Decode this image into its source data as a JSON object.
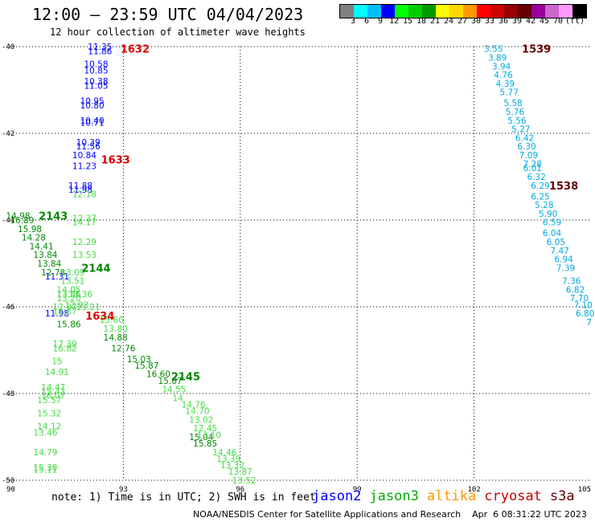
{
  "header": {
    "title": "12:00 — 23:59 UTC 04/04/2023",
    "subtitle": "12 hour collection of altimeter wave heights"
  },
  "colorbar": {
    "colors": [
      "#808080",
      "#00ffff",
      "#00bfff",
      "#0000ff",
      "#00ff00",
      "#00cc00",
      "#009900",
      "#ffff00",
      "#ffd700",
      "#ff9900",
      "#ff0000",
      "#cc0000",
      "#990000",
      "#660000",
      "#990099",
      "#cc66cc",
      "#ff99ff",
      "#000000"
    ],
    "ticks": [
      "3",
      "6",
      "9",
      "12",
      "15",
      "18",
      "21",
      "24",
      "27",
      "30",
      "33",
      "36",
      "39",
      "42",
      "45",
      "70",
      "(ft)"
    ]
  },
  "note": "note:  1) Time is in UTC; 2) SWH is in feet",
  "legend": [
    {
      "label": "jason2",
      "color": "#0000ff"
    },
    {
      "label": "jason3",
      "color": "#00aa00"
    },
    {
      "label": "altika",
      "color": "#ff9900"
    },
    {
      "label": "cryosat",
      "color": "#cc0000"
    },
    {
      "label": "s3a",
      "color": "#660000"
    }
  ],
  "footer": "NOAA/NESDIS Center for Satellite Applications and Research    Apr  6 08:31:22 UTC 2023",
  "chart_data": {
    "type": "scatter",
    "xlim": [
      90,
      105
    ],
    "ylim": [
      -50,
      -40
    ],
    "xticks": [
      "90",
      "93",
      "96",
      "99",
      "102",
      "105"
    ],
    "yticks": [
      "-40",
      "-42",
      "-44",
      "-46",
      "-48",
      "-50"
    ],
    "grid": true,
    "times": [
      {
        "label": "1632",
        "x": 93.3,
        "y": -40.05,
        "color": "#dd0000"
      },
      {
        "label": "1633",
        "x": 92.8,
        "y": -42.6,
        "color": "#dd0000"
      },
      {
        "label": "1634",
        "x": 92.4,
        "y": -46.2,
        "color": "#dd0000"
      },
      {
        "label": "2143",
        "x": 91.2,
        "y": -43.9,
        "color": "#008800"
      },
      {
        "label": "2144",
        "x": 92.3,
        "y": -45.1,
        "color": "#008800"
      },
      {
        "label": "2145",
        "x": 94.6,
        "y": -47.6,
        "color": "#008800"
      },
      {
        "label": "1539",
        "x": 103.6,
        "y": -40.05,
        "color": "#660000"
      },
      {
        "label": "1538",
        "x": 104.3,
        "y": -43.2,
        "color": "#660000"
      }
    ],
    "series": [
      {
        "name": "jason2",
        "color": "#0000ff",
        "points": [
          {
            "x": 92.4,
            "y": -40.0,
            "v": 11.35
          },
          {
            "x": 92.4,
            "y": -40.1,
            "v": 11.86
          },
          {
            "x": 92.3,
            "y": -40.4,
            "v": 10.58
          },
          {
            "x": 92.3,
            "y": -40.55,
            "v": 10.85
          },
          {
            "x": 92.3,
            "y": -40.8,
            "v": 10.38
          },
          {
            "x": 92.3,
            "y": -40.9,
            "v": 11.05
          },
          {
            "x": 92.2,
            "y": -41.25,
            "v": 10.95
          },
          {
            "x": 92.2,
            "y": -41.35,
            "v": 10.8
          },
          {
            "x": 92.2,
            "y": -41.7,
            "v": 10.4
          },
          {
            "x": 92.2,
            "y": -41.75,
            "v": 10.71
          },
          {
            "x": 92.1,
            "y": -42.2,
            "v": 10.39
          },
          {
            "x": 92.1,
            "y": -42.3,
            "v": 11.56
          },
          {
            "x": 92.0,
            "y": -42.5,
            "v": 10.84
          },
          {
            "x": 92.0,
            "y": -42.75,
            "v": 11.23
          },
          {
            "x": 91.9,
            "y": -43.2,
            "v": 11.88
          },
          {
            "x": 91.9,
            "y": -43.3,
            "v": 11.98
          },
          {
            "x": 91.3,
            "y": -45.3,
            "v": 11.31
          },
          {
            "x": 91.3,
            "y": -46.15,
            "v": 11.98
          }
        ]
      },
      {
        "name": "jason3",
        "color": "#008800",
        "points": [
          {
            "x": 90.3,
            "y": -43.9,
            "v": 14.98
          },
          {
            "x": 90.4,
            "y": -44.0,
            "v": 16.89
          },
          {
            "x": 90.6,
            "y": -44.2,
            "v": 15.98
          },
          {
            "x": 90.7,
            "y": -44.4,
            "v": 14.28
          },
          {
            "x": 90.9,
            "y": -44.6,
            "v": 14.41
          },
          {
            "x": 91.0,
            "y": -44.8,
            "v": 13.84
          },
          {
            "x": 91.1,
            "y": -45.0,
            "v": 13.84
          },
          {
            "x": 91.2,
            "y": -45.2,
            "v": 12.78
          },
          {
            "x": 91.6,
            "y": -46.4,
            "v": 15.86
          },
          {
            "x": 92.8,
            "y": -46.7,
            "v": 14.88
          },
          {
            "x": 93.0,
            "y": -46.95,
            "v": 12.76
          },
          {
            "x": 93.4,
            "y": -47.2,
            "v": 15.03
          },
          {
            "x": 93.6,
            "y": -47.35,
            "v": 15.87
          },
          {
            "x": 93.9,
            "y": -47.55,
            "v": 16.6
          },
          {
            "x": 94.2,
            "y": -47.7,
            "v": 15.67
          },
          {
            "x": 95.0,
            "y": -49.0,
            "v": 15.04
          },
          {
            "x": 95.1,
            "y": -49.15,
            "v": 15.85
          }
        ]
      },
      {
        "name": "jason3-light",
        "color": "#44dd44",
        "points": [
          {
            "x": 92.0,
            "y": -43.4,
            "v": 12.18
          },
          {
            "x": 92.0,
            "y": -43.95,
            "v": 12.37
          },
          {
            "x": 92.0,
            "y": -44.05,
            "v": 14.17
          },
          {
            "x": 92.0,
            "y": -44.5,
            "v": 12.29
          },
          {
            "x": 92.0,
            "y": -44.8,
            "v": 13.53
          },
          {
            "x": 91.7,
            "y": -45.2,
            "v": 13.09
          },
          {
            "x": 91.7,
            "y": -45.4,
            "v": 13.51
          },
          {
            "x": 91.6,
            "y": -45.6,
            "v": 14.05
          },
          {
            "x": 91.6,
            "y": -45.7,
            "v": 13.36
          },
          {
            "x": 91.9,
            "y": -45.7,
            "v": 13.36
          },
          {
            "x": 91.6,
            "y": -45.8,
            "v": 13.2
          },
          {
            "x": 91.8,
            "y": -45.95,
            "v": 12.93
          },
          {
            "x": 91.5,
            "y": -46.0,
            "v": 12.37
          },
          {
            "x": 92.1,
            "y": -46.0,
            "v": 13.21
          },
          {
            "x": 91.5,
            "y": -46.1,
            "v": 11.67
          },
          {
            "x": 92.7,
            "y": -46.3,
            "v": 15.6
          },
          {
            "x": 92.8,
            "y": -46.5,
            "v": 13.8
          },
          {
            "x": 91.5,
            "y": -46.85,
            "v": 17.39
          },
          {
            "x": 91.5,
            "y": -46.95,
            "v": 16.82
          },
          {
            "x": 91.3,
            "y": -47.25,
            "v": 15.0
          },
          {
            "x": 91.3,
            "y": -47.5,
            "v": 14.91
          },
          {
            "x": 94.3,
            "y": -47.9,
            "v": 14.55
          },
          {
            "x": 94.4,
            "y": -48.1,
            "v": 14.0
          },
          {
            "x": 91.2,
            "y": -47.85,
            "v": 14.47
          },
          {
            "x": 91.2,
            "y": -47.95,
            "v": 15.43
          },
          {
            "x": 91.2,
            "y": -48.05,
            "v": 16.07
          },
          {
            "x": 91.1,
            "y": -48.15,
            "v": 15.57
          },
          {
            "x": 94.8,
            "y": -48.25,
            "v": 14.76
          },
          {
            "x": 94.9,
            "y": -48.4,
            "v": 14.7
          },
          {
            "x": 91.1,
            "y": -48.45,
            "v": 15.32
          },
          {
            "x": 95.0,
            "y": -48.6,
            "v": 13.02
          },
          {
            "x": 95.1,
            "y": -48.8,
            "v": 12.45
          },
          {
            "x": 91.1,
            "y": -48.75,
            "v": 14.12
          },
          {
            "x": 95.2,
            "y": -48.95,
            "v": 13.1
          },
          {
            "x": 91.0,
            "y": -48.9,
            "v": 13.46
          },
          {
            "x": 95.6,
            "y": -49.35,
            "v": 14.46
          },
          {
            "x": 95.7,
            "y": -49.5,
            "v": 13.39
          },
          {
            "x": 91.0,
            "y": -49.35,
            "v": 14.79
          },
          {
            "x": 95.8,
            "y": -49.65,
            "v": 13.32
          },
          {
            "x": 91.0,
            "y": -49.7,
            "v": 15.3
          },
          {
            "x": 91.0,
            "y": -49.75,
            "v": 15.11
          },
          {
            "x": 96.0,
            "y": -49.8,
            "v": 13.87
          },
          {
            "x": 96.1,
            "y": -50.0,
            "v": 13.52
          }
        ]
      },
      {
        "name": "s3a",
        "color": "#00aadd",
        "points": [
          {
            "x": 102.5,
            "y": -40.05,
            "v": 3.55
          },
          {
            "x": 102.6,
            "y": -40.25,
            "v": 3.89
          },
          {
            "x": 102.7,
            "y": -40.45,
            "v": 3.94
          },
          {
            "x": 102.75,
            "y": -40.65,
            "v": 4.76
          },
          {
            "x": 102.8,
            "y": -40.85,
            "v": 4.39
          },
          {
            "x": 102.9,
            "y": -41.05,
            "v": 5.77
          },
          {
            "x": 103.0,
            "y": -41.3,
            "v": 5.58
          },
          {
            "x": 103.05,
            "y": -41.5,
            "v": 5.76
          },
          {
            "x": 103.1,
            "y": -41.7,
            "v": 5.56
          },
          {
            "x": 103.2,
            "y": -41.9,
            "v": 5.27
          },
          {
            "x": 103.3,
            "y": -42.1,
            "v": 6.42
          },
          {
            "x": 103.35,
            "y": -42.3,
            "v": 6.3
          },
          {
            "x": 103.4,
            "y": -42.5,
            "v": 7.09
          },
          {
            "x": 103.5,
            "y": -42.7,
            "v": 7.28
          },
          {
            "x": 103.5,
            "y": -42.8,
            "v": 6.01
          },
          {
            "x": 103.6,
            "y": -43.0,
            "v": 6.32
          },
          {
            "x": 103.7,
            "y": -43.2,
            "v": 6.29
          },
          {
            "x": 103.7,
            "y": -43.45,
            "v": 6.25
          },
          {
            "x": 103.8,
            "y": -43.65,
            "v": 5.28
          },
          {
            "x": 103.9,
            "y": -43.85,
            "v": 5.9
          },
          {
            "x": 104.0,
            "y": -44.05,
            "v": 6.59
          },
          {
            "x": 104.0,
            "y": -44.3,
            "v": 6.04
          },
          {
            "x": 104.1,
            "y": -44.5,
            "v": 6.05
          },
          {
            "x": 104.2,
            "y": -44.7,
            "v": 7.47
          },
          {
            "x": 104.3,
            "y": -44.9,
            "v": 6.94
          },
          {
            "x": 104.35,
            "y": -45.1,
            "v": 7.39
          },
          {
            "x": 104.5,
            "y": -45.4,
            "v": 7.36
          },
          {
            "x": 104.6,
            "y": -45.6,
            "v": 6.82
          },
          {
            "x": 104.7,
            "y": -45.8,
            "v": 7.7
          },
          {
            "x": 104.8,
            "y": -45.95,
            "v": 7.1
          },
          {
            "x": 104.85,
            "y": -46.15,
            "v": 6.8
          },
          {
            "x": 104.95,
            "y": -46.35,
            "v": 7
          }
        ]
      }
    ]
  }
}
